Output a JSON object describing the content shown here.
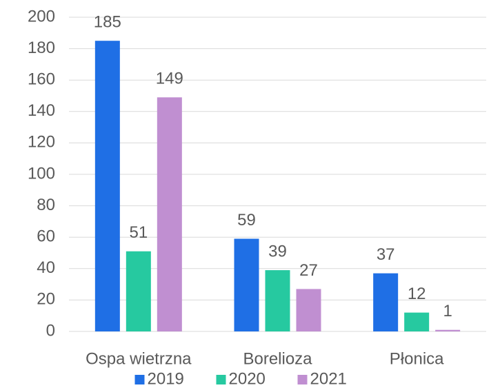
{
  "chart_data": {
    "type": "bar",
    "categories": [
      "Ospa wietrzna",
      "Borelioza",
      "Płonica"
    ],
    "series": [
      {
        "name": "2019",
        "color": "#1f6fe5",
        "values": [
          185,
          59,
          37
        ]
      },
      {
        "name": "2020",
        "color": "#26c9a0",
        "values": [
          51,
          39,
          12
        ]
      },
      {
        "name": "2021",
        "color": "#c08fd1",
        "values": [
          149,
          27,
          1
        ]
      }
    ],
    "ylim": [
      0,
      200
    ],
    "yticks": [
      0,
      20,
      40,
      60,
      80,
      100,
      120,
      140,
      160,
      180,
      200
    ],
    "grid": true,
    "legend": "bottom"
  }
}
